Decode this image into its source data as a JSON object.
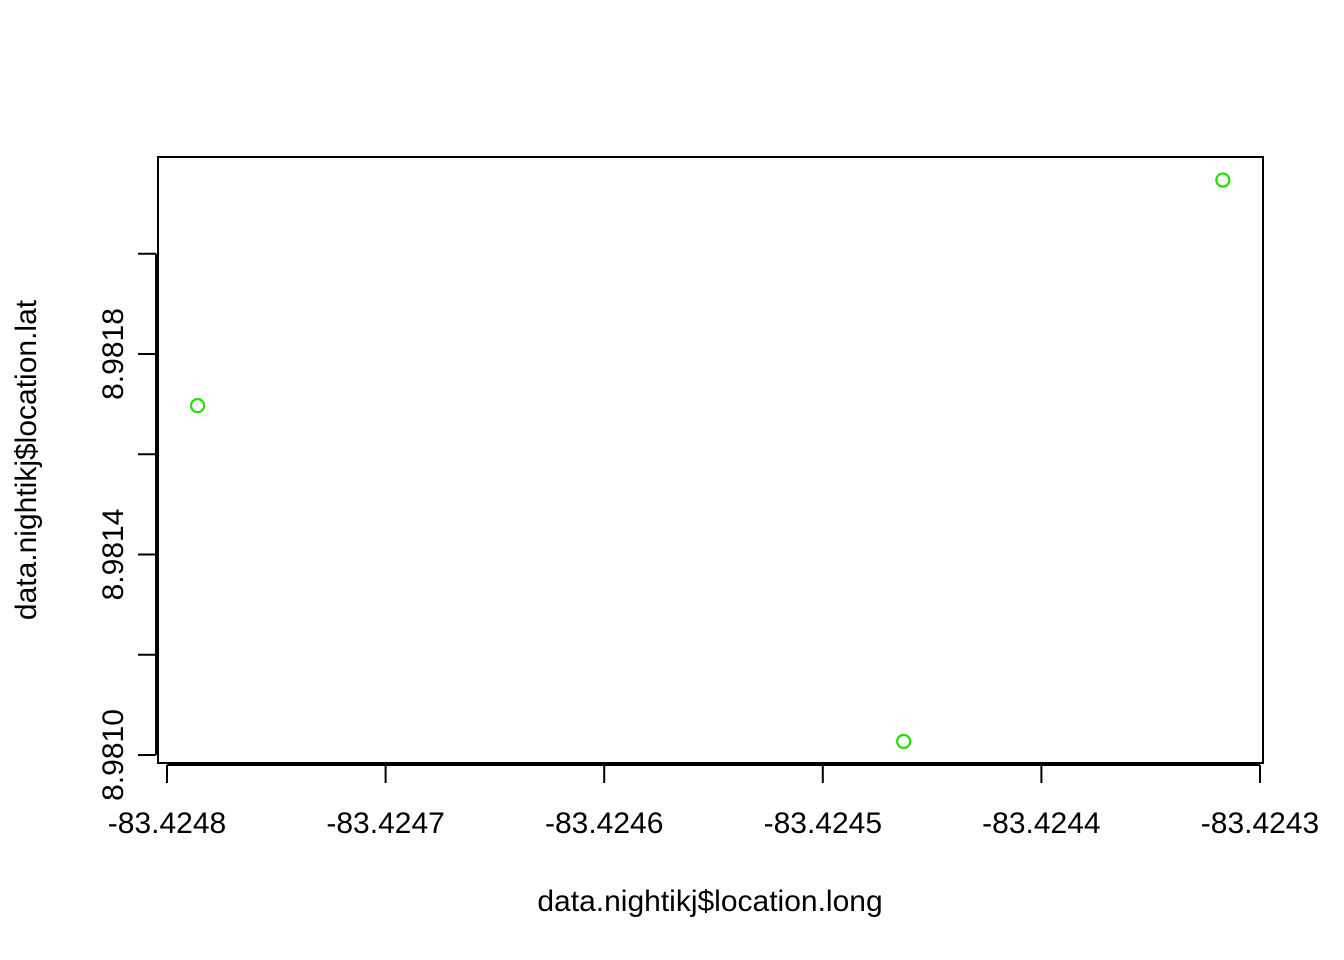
{
  "chart_data": {
    "type": "scatter",
    "title": "",
    "xlabel": "data.nightikj$location.long",
    "ylabel": "data.nightikj$location.lat",
    "xlim": [
      -83.42482,
      -83.4243
    ],
    "ylim": [
      8.98097,
      8.98218
    ],
    "x_ticks": [
      -83.4248,
      -83.4247,
      -83.4246,
      -83.4245,
      -83.4244,
      -83.4243
    ],
    "x_tick_labels": [
      "-83.4248",
      "-83.4247",
      "-83.4246",
      "-83.4245",
      "-83.4244",
      "-83.4243"
    ],
    "y_ticks": [
      8.981,
      8.9812,
      8.9814,
      8.9816,
      8.9818,
      8.982
    ],
    "y_tick_labels": [
      "8.9810",
      "",
      "8.9814",
      "",
      "8.9818",
      ""
    ],
    "grid": false,
    "point_color": "#22dd00",
    "points": [
      {
        "x": -83.424786,
        "y": 8.981697
      },
      {
        "x": -83.424463,
        "y": 8.981027
      },
      {
        "x": -83.424317,
        "y": 8.982147
      }
    ]
  }
}
